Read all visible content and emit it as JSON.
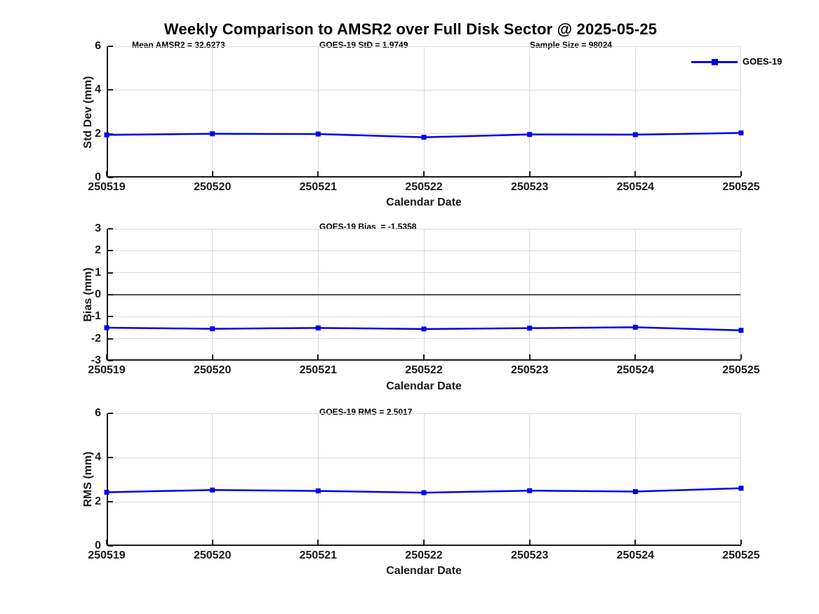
{
  "title": "Weekly Comparison to AMSR2 over Full Disk Sector @ 2025-05-25",
  "legend": {
    "label": "GOES-19"
  },
  "colors": {
    "series": "#0000ee",
    "grid": "#d9d9d9",
    "zero_line": "#4d4d4d",
    "axis": "#1a1a1a"
  },
  "stats": {
    "mean_amsr2": "32.6273",
    "goes19_std": "1.9749",
    "sample_size": "98024",
    "goes19_bias": "-1.5358",
    "goes19_rms": "2.5017"
  },
  "chart_data": [
    {
      "type": "line",
      "name": "std-dev-vs-date",
      "annotations": [
        "Mean AMSR2 = 32.6273",
        "GOES-19 StD = 1.9749",
        "Sample Size = 98024"
      ],
      "categories": [
        "250519",
        "250520",
        "250521",
        "250522",
        "250523",
        "250524",
        "250525"
      ],
      "series": [
        {
          "name": "GOES-19",
          "values": [
            1.95,
            2.0,
            1.99,
            1.84,
            1.97,
            1.96,
            2.04
          ]
        }
      ],
      "xlabel": "Calendar Date",
      "ylabel": "Std Dev (mm)",
      "ylim": [
        0,
        6
      ],
      "yticks": [
        0,
        2,
        4,
        6
      ],
      "grid": true,
      "zero_line": false,
      "legend_position": "northeast"
    },
    {
      "type": "line",
      "name": "bias-vs-date",
      "annotations": [
        "GOES-19 Bias  = -1.5358"
      ],
      "categories": [
        "250519",
        "250520",
        "250521",
        "250522",
        "250523",
        "250524",
        "250525"
      ],
      "series": [
        {
          "name": "GOES-19",
          "values": [
            -1.5,
            -1.55,
            -1.51,
            -1.56,
            -1.52,
            -1.48,
            -1.62
          ]
        }
      ],
      "xlabel": "Calendar Date",
      "ylabel": "Bias (mm)",
      "ylim": [
        -3,
        3
      ],
      "yticks": [
        -3,
        -2,
        -1,
        0,
        1,
        2,
        3
      ],
      "grid": true,
      "zero_line": true
    },
    {
      "type": "line",
      "name": "rms-vs-date",
      "annotations": [
        "GOES-19 RMS = 2.5017"
      ],
      "categories": [
        "250519",
        "250520",
        "250521",
        "250522",
        "250523",
        "250524",
        "250525"
      ],
      "series": [
        {
          "name": "GOES-19",
          "values": [
            2.43,
            2.53,
            2.49,
            2.41,
            2.5,
            2.46,
            2.61
          ]
        }
      ],
      "xlabel": "Calendar Date",
      "ylabel": "RMS (mm)",
      "ylim": [
        0,
        6
      ],
      "yticks": [
        0,
        2,
        4,
        6
      ],
      "grid": true,
      "zero_line": false
    }
  ]
}
